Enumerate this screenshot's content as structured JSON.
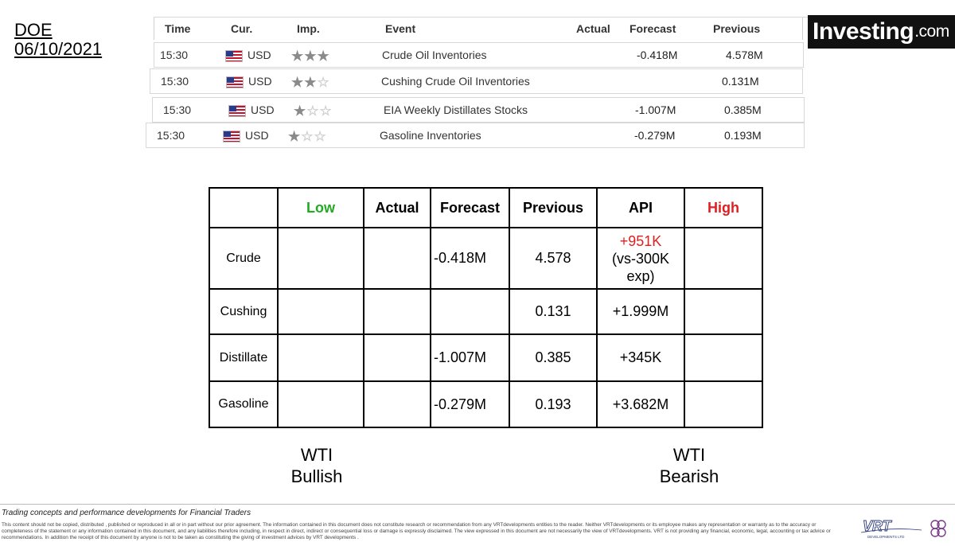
{
  "doe": {
    "line1": "DOE",
    "line2": "06/10/2021"
  },
  "calendar": {
    "headers": {
      "time": "Time",
      "cur": "Cur.",
      "imp": "Imp.",
      "event": "Event",
      "actual": "Actual",
      "forecast": "Forecast",
      "previous": "Previous"
    },
    "rows": [
      {
        "time": "15:30",
        "currency": "USD",
        "stars": 3,
        "event": "Crude Oil Inventories",
        "actual": "",
        "forecast": "-0.418M",
        "previous": "4.578M"
      },
      {
        "time": "15:30",
        "currency": "USD",
        "stars": 2,
        "event": "Cushing Crude Oil Inventories",
        "actual": "",
        "forecast": "",
        "previous": "0.131M"
      },
      {
        "time": "15:30",
        "currency": "USD",
        "stars": 1,
        "event": "EIA Weekly Distillates Stocks",
        "actual": "",
        "forecast": "-1.007M",
        "previous": "0.385M"
      },
      {
        "time": "15:30",
        "currency": "USD",
        "stars": 1,
        "event": "Gasoline Inventories",
        "actual": "",
        "forecast": "-0.279M",
        "previous": "0.193M"
      }
    ]
  },
  "logo": {
    "main": "Investing",
    "suffix": ".com"
  },
  "table": {
    "headers": {
      "low": "Low",
      "actual": "Actual",
      "forecast": "Forecast",
      "previous": "Previous",
      "api": "API",
      "high": "High"
    },
    "rows": [
      {
        "label": "Crude",
        "low": "",
        "actual": "",
        "forecast": "-0.418M",
        "previous": "4.578",
        "api_highlight": "+951K",
        "api_note1": "(vs-300K",
        "api_note2": "exp)",
        "high": ""
      },
      {
        "label": "Cushing",
        "low": "",
        "actual": "",
        "forecast": "",
        "previous": "0.131",
        "api": "+1.999M",
        "high": ""
      },
      {
        "label": "Distillate",
        "low": "",
        "actual": "",
        "forecast": "-1.007M",
        "previous": "0.385",
        "api": "+345K",
        "high": ""
      },
      {
        "label": "Gasoline",
        "low": "",
        "actual": "",
        "forecast": "-0.279M",
        "previous": "0.193",
        "api": "+3.682M",
        "high": ""
      }
    ],
    "colors": {
      "low": "#22aa22",
      "high": "#e02020",
      "api_highlight": "#e02020"
    }
  },
  "outlook": {
    "bullish": {
      "line1": "WTI",
      "line2": "Bullish"
    },
    "bearish": {
      "line1": "WTI",
      "line2": "Bearish"
    }
  },
  "footer": {
    "title": "Trading concepts and performance developments for Financial Traders",
    "disclaimer": "This content should not be copied, distributed , published or reproduced in all or in part without our prior agreement. The information contained in this document does not constitute research or recommendation from any VRTdevelopments entities to the reader. Neither VRTdevelopments or its employee makes any representation or warranty as to the accuracy or completeness of the statement or any information contained in this document, and any liabilities therefore including, in respect in direct, indirect or consequential loss or damage is expressly disclaimed. The view expressed in this document are not necessarily the view of VRTdevelopments. VRT is not providing any financial, economic, legal, accounting or tax advice or recommendations. In addition the receipt of this document by anyone is not to be taken as constituting the giving of investment advices by VRT developments .",
    "vrt_logo": "VRT",
    "vrt_subtitle": "DEVELOPMENTS LTD"
  }
}
